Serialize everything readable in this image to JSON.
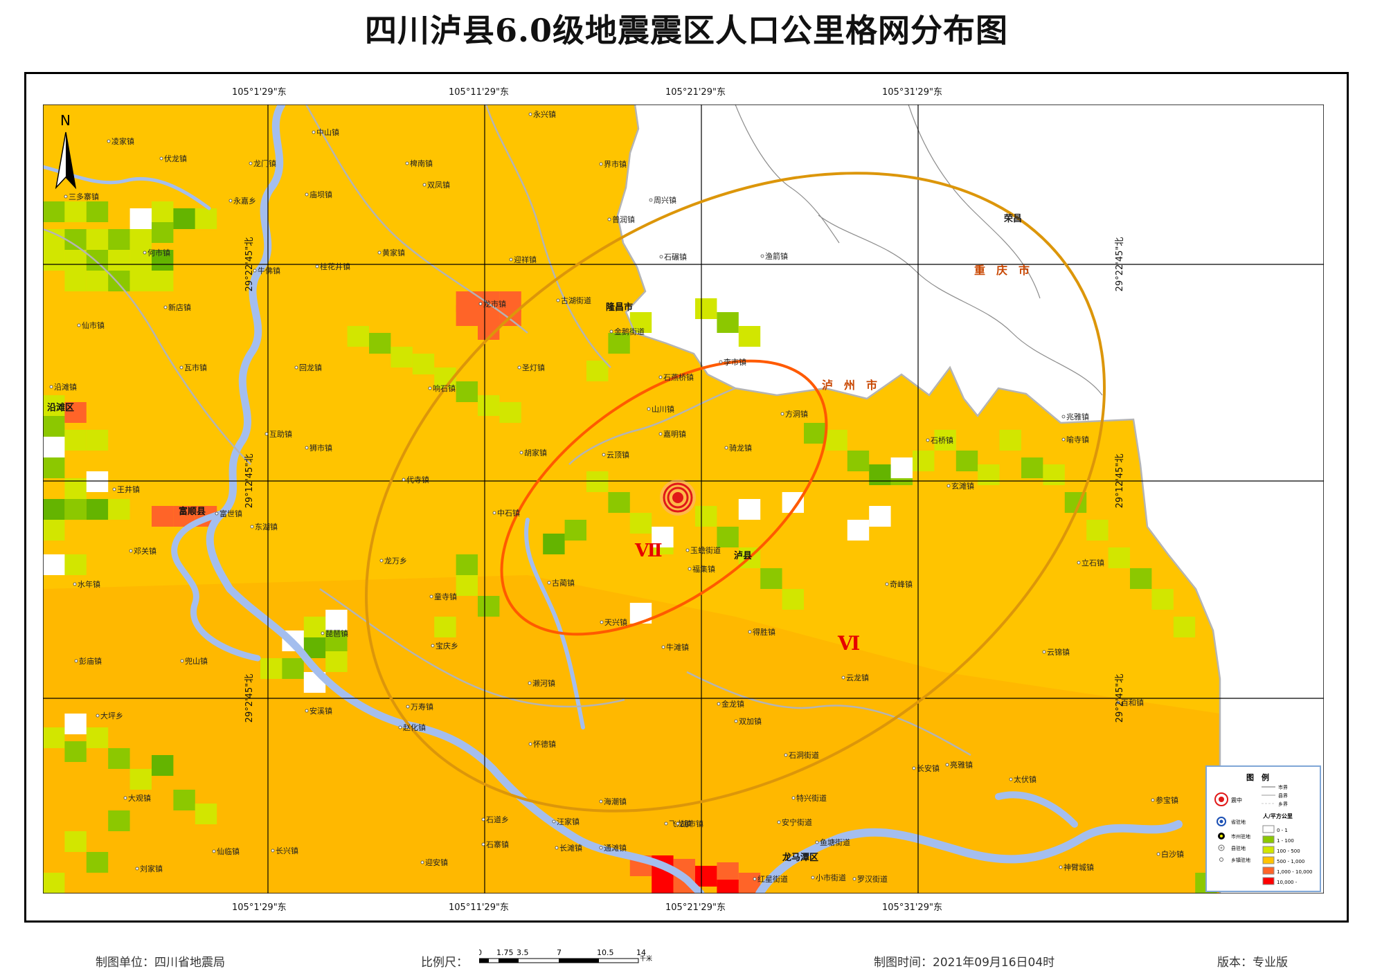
{
  "title": "四川泸县6.0级地震震区人口公里格网分布图",
  "colors": {
    "bg_yellow": "#FFC400",
    "bg_orange": "#FFAF00",
    "low": "#8CC800",
    "mid_low": "#D2E600",
    "green": "#64B400",
    "high": "#FF6428",
    "very_high": "#FF0000",
    "river": "#A4BEEE",
    "boundary": "#B4B4B4",
    "intensity7": "#FF5A00",
    "intensity6": "#DC960A",
    "intensity_label": "#E60000"
  },
  "coords": {
    "lon_labels": [
      "105°1'29\"东",
      "105°11'29\"东",
      "105°21'29\"东",
      "105°31'29\"东"
    ],
    "lat_labels": [
      "29°22'45\"北",
      "29°12'45\"北",
      "29°2'45\"北"
    ]
  },
  "north_label": "N",
  "intensity": {
    "vii": "Ⅶ",
    "vi": "Ⅵ"
  },
  "regions": {
    "rongchang": "荣昌",
    "chongqing": "重　庆　市",
    "luzhou": "泸　州　市"
  },
  "cities": {
    "yanjiang_qu": "沿滩区",
    "fushun_xian": "富顺县",
    "longchang_shi": "隆昌市",
    "lu_xian": "泸县",
    "longmatan_qu": "龙马潭区"
  },
  "towns": [
    "永兴镇",
    "中山镇",
    "凌家镇",
    "伏龙镇",
    "龙门镇",
    "椑南镇",
    "界市镇",
    "双凤镇",
    "三多寨镇",
    "庙坝镇",
    "永嘉乡",
    "周兴镇",
    "普润镇",
    "何市镇",
    "黄家镇",
    "迎祥镇",
    "石碾镇",
    "渔箭镇",
    "牛佛镇",
    "桂花井镇",
    "古湖街道",
    "新店镇",
    "龙市镇",
    "仙市镇",
    "金鹅街道",
    "瓦市镇",
    "回龙镇",
    "圣灯镇",
    "李市镇",
    "石燕桥镇",
    "沿滩镇",
    "响石镇",
    "山川镇",
    "方洞镇",
    "嘉明镇",
    "石桥镇",
    "互助镇",
    "狮市镇",
    "骑龙镇",
    "喻寺镇",
    "兆雅镇",
    "胡家镇",
    "云顶镇",
    "代寺镇",
    "玄滩镇",
    "王井镇",
    "富世镇",
    "中石镇",
    "东湖镇",
    "邓关镇",
    "龙万乡",
    "玉蟾街道",
    "立石镇",
    "福集镇",
    "古蔺镇",
    "水年镇",
    "奇峰镇",
    "童寺镇",
    "天兴镇",
    "琵琶镇",
    "得胜镇",
    "宝庆乡",
    "牛滩镇",
    "云锦镇",
    "彭庙镇",
    "兜山镇",
    "云龙镇",
    "濑河镇",
    "金龙镇",
    "安溪镇",
    "万寿镇",
    "百和镇",
    "双加镇",
    "大坪乡",
    "赵化镇",
    "怀德镇",
    "石洞街道",
    "亮雅镇",
    "长安镇",
    "太伏镇",
    "海潮镇",
    "大观镇",
    "参宝镇",
    "特兴街道",
    "石道乡",
    "安宁街道",
    "汪家镇",
    "飞龙镇",
    "长滩镇",
    "胡市镇",
    "鱼塘街道",
    "仙临镇",
    "长兴镇",
    "石寨镇",
    "通滩镇",
    "迎安镇",
    "刘家镇",
    "红星街道",
    "小市街道",
    "罗汉街道",
    "神臂城镇",
    "白沙镇"
  ],
  "legend": {
    "title": "图　例",
    "epicenter": "震中",
    "city_boundary": "市界",
    "county_boundary": "县界",
    "township_boundary": "乡界",
    "city_seat": "省驻地",
    "density_title": "人/平方公里",
    "prefecture_seat": "市州驻地",
    "county_seat": "县驻地",
    "town_seat": "乡镇驻地",
    "classes": [
      "0 - 1",
      "1 - 100",
      "100 - 500",
      "500 - 1,000",
      "1,000 - 10,000",
      "10,000 -"
    ]
  },
  "footer": {
    "unit": "制图单位：四川省地震局",
    "scale_label": "比例尺：",
    "scale_ticks": [
      "0",
      "1.75",
      "3.5",
      "7",
      "10.5",
      "14"
    ],
    "scale_unit": "千米",
    "time": "制图时间：2021年09月16日04时",
    "version": "版本：专业版"
  }
}
